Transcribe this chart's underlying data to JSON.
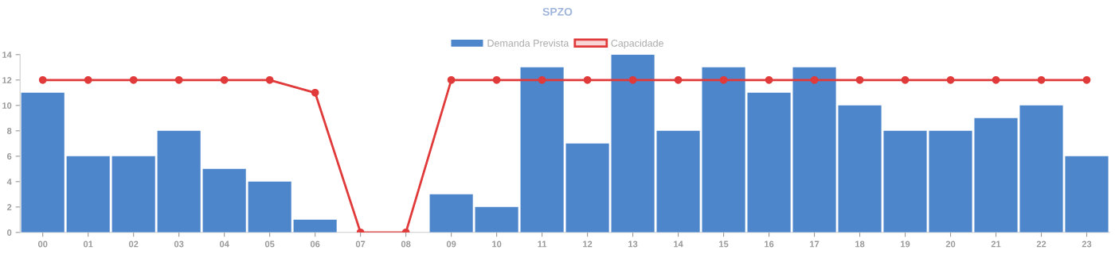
{
  "chart_data": {
    "type": "bar",
    "title": "SPZO",
    "categories": [
      "00",
      "01",
      "02",
      "03",
      "04",
      "05",
      "06",
      "07",
      "08",
      "09",
      "10",
      "11",
      "12",
      "13",
      "14",
      "15",
      "16",
      "17",
      "18",
      "19",
      "20",
      "21",
      "22",
      "23"
    ],
    "series": [
      {
        "name": "Demanda Prevista",
        "color": "#4e86cc",
        "values": [
          11,
          6,
          6,
          8,
          5,
          4,
          1,
          0,
          0,
          3,
          2,
          13,
          7,
          14,
          8,
          13,
          11,
          13,
          10,
          8,
          8,
          9,
          10,
          6
        ]
      },
      {
        "name": "Capacidade",
        "type": "line",
        "color": "#e03a3a",
        "marker": "circle",
        "values": [
          12,
          12,
          12,
          12,
          12,
          12,
          11,
          0,
          0,
          12,
          12,
          12,
          12,
          12,
          12,
          12,
          12,
          12,
          12,
          12,
          12,
          12,
          12,
          12
        ]
      }
    ],
    "ylim": [
      0,
      14
    ],
    "yticks": [
      0,
      2,
      4,
      6,
      8,
      10,
      12,
      14
    ],
    "grid": false,
    "legend": "top"
  }
}
